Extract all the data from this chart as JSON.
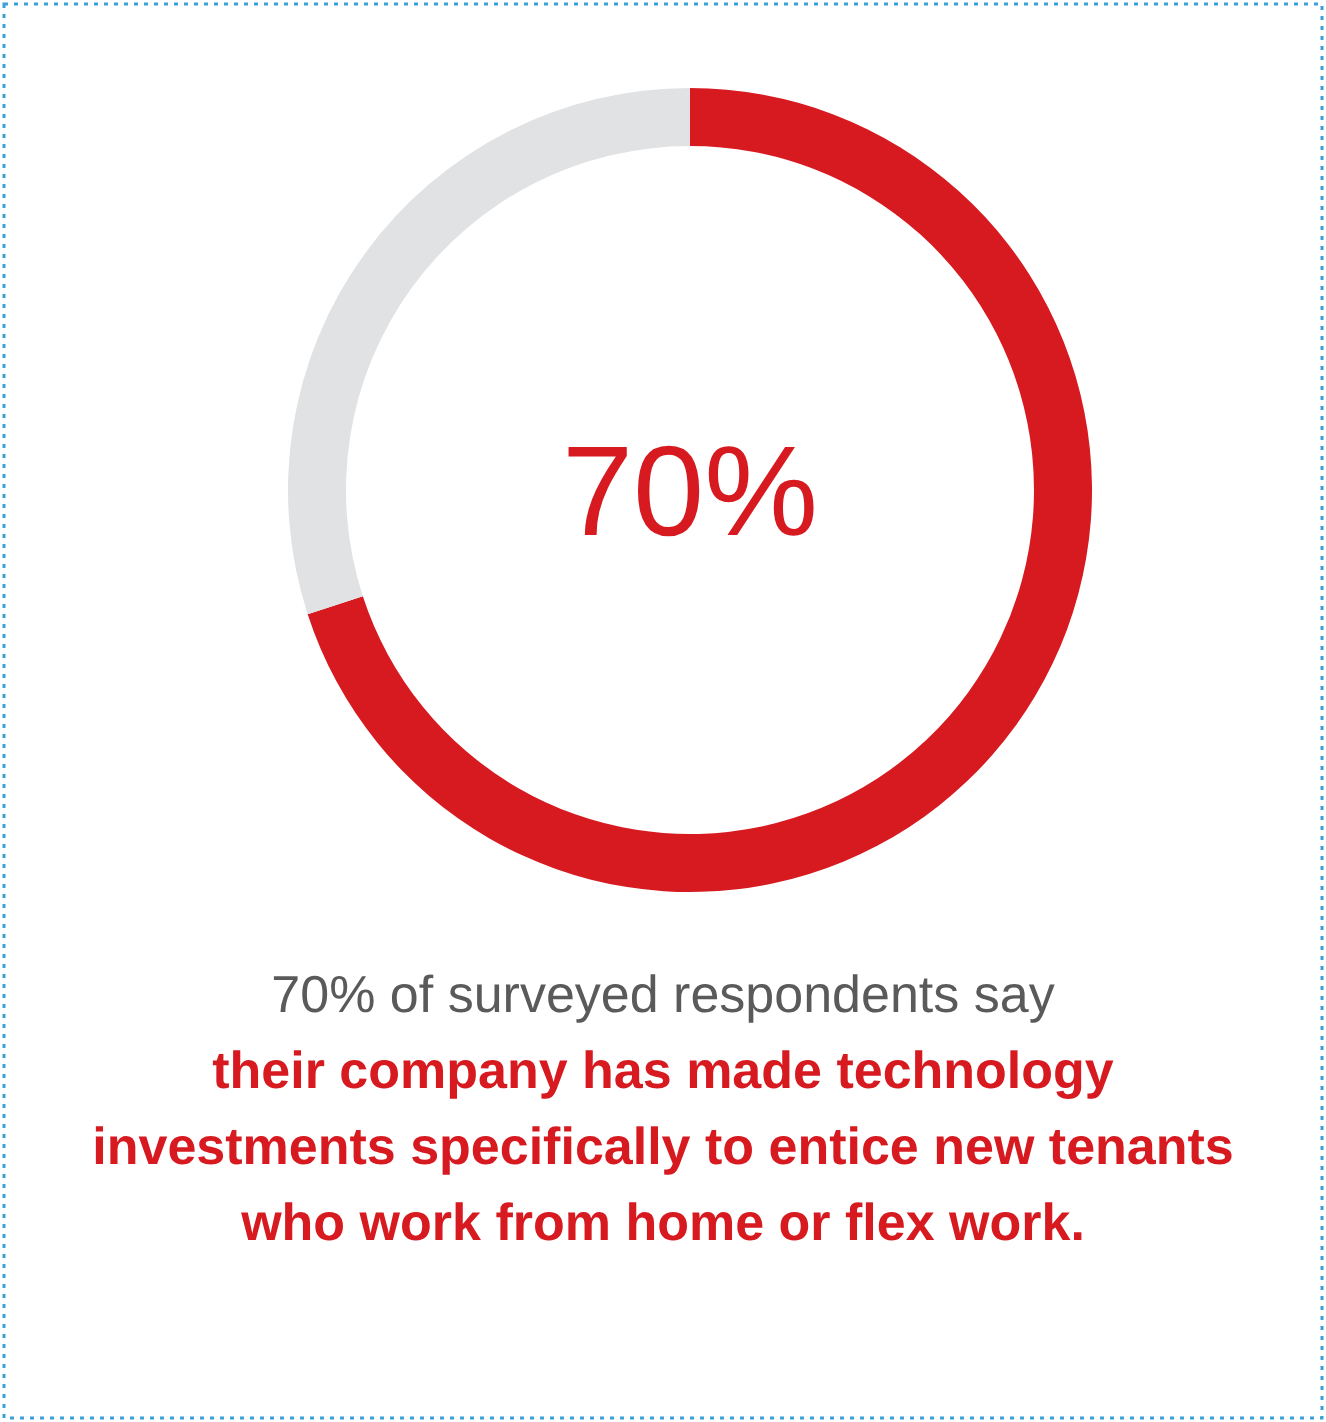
{
  "chart_data": {
    "type": "donut",
    "categories": [
      null,
      null
    ],
    "values": [
      70,
      30
    ],
    "colors": [
      "#d71920",
      "#e1e2e4"
    ],
    "value_labels": [
      "70%",
      null
    ],
    "annotations": [
      "70% of surveyed respondents say",
      "their company has made technology investments specifically to entice new tenants who work from home or flex work."
    ]
  }
}
